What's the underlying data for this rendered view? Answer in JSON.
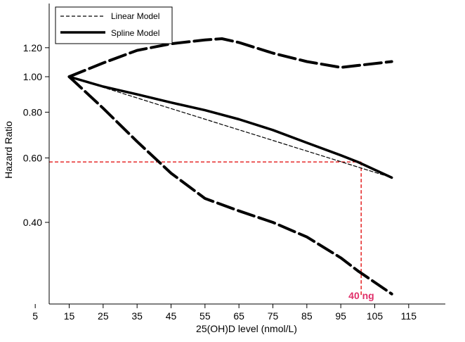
{
  "chart_data": {
    "type": "line",
    "title": "",
    "xlabel": "25(OH)D level (nmol/L)",
    "ylabel": "Hazard Ratio",
    "xlim": [
      0,
      120
    ],
    "ylim": [
      0.25,
      1.37
    ],
    "y_scale": "log",
    "grid": false,
    "legend_position": "top-left",
    "x_ticks": [
      5,
      15,
      25,
      35,
      45,
      55,
      65,
      75,
      85,
      95,
      105,
      115
    ],
    "y_ticks": [
      0.4,
      0.6,
      0.8,
      1.0,
      1.2
    ],
    "y_tick_labels": [
      "0.40",
      "0.60",
      "0.80",
      "1.00",
      "1.20"
    ],
    "legend": [
      {
        "name": "Linear Model",
        "style": "dashed-thin"
      },
      {
        "name": "Spline Model",
        "style": "solid-thick"
      }
    ],
    "series": [
      {
        "name": "Linear Model",
        "style": "dashed-thin",
        "color": "#000000",
        "x": [
          15,
          110
        ],
        "y": [
          1.0,
          0.53
        ]
      },
      {
        "name": "Spline Model",
        "style": "solid-thick",
        "color": "#000000",
        "x": [
          15,
          25,
          35,
          45,
          55,
          65,
          75,
          85,
          95,
          100,
          110
        ],
        "y": [
          1.0,
          0.94,
          0.895,
          0.85,
          0.81,
          0.765,
          0.715,
          0.66,
          0.61,
          0.585,
          0.53
        ]
      },
      {
        "name": "Spline upper 95% CI",
        "style": "long-dash",
        "color": "#000000",
        "x": [
          15,
          25,
          35,
          45,
          55,
          60,
          65,
          75,
          85,
          95,
          110
        ],
        "y": [
          1.0,
          1.09,
          1.18,
          1.23,
          1.26,
          1.27,
          1.24,
          1.16,
          1.1,
          1.06,
          1.1
        ]
      },
      {
        "name": "Spline lower 95% CI",
        "style": "long-dash",
        "color": "#000000",
        "x": [
          15,
          25,
          35,
          45,
          55,
          65,
          75,
          85,
          95,
          100,
          110
        ],
        "y": [
          1.0,
          0.82,
          0.665,
          0.545,
          0.465,
          0.43,
          0.4,
          0.365,
          0.32,
          0.295,
          0.255
        ]
      }
    ],
    "reference_lines": [
      {
        "orientation": "horizontal",
        "y": 0.585,
        "x_from": 0,
        "x_to": 101,
        "color": "#e00000",
        "style": "dashed"
      },
      {
        "orientation": "vertical",
        "x": 101,
        "y_from": 0.585,
        "y_to": 0.25,
        "color": "#e00000",
        "style": "dashed"
      }
    ],
    "annotations": [
      {
        "text": "40 ng",
        "x": 101,
        "y": 0.255,
        "color": "#e0306a"
      }
    ]
  }
}
